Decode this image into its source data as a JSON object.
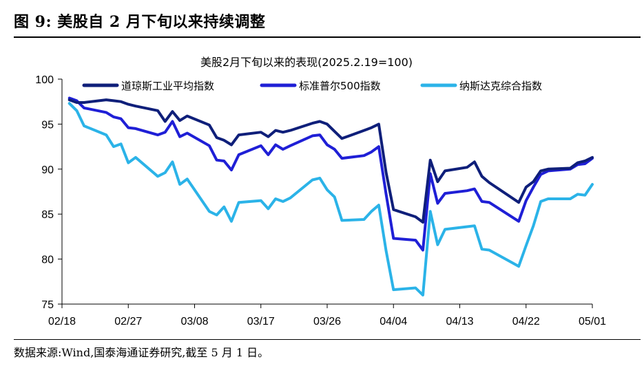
{
  "figure": {
    "title": "图 9:  美股自 2 月下旬以来持续调整",
    "source": "数据来源:Wind,国泰海通证券研究,截至 5 月 1 日。"
  },
  "chart_data": {
    "type": "line",
    "title": "美股2月下旬以来的表现(2025.2.19=100)",
    "xlabel": "",
    "ylabel": "",
    "ylim": [
      75,
      100
    ],
    "yticks": [
      75,
      80,
      85,
      90,
      95,
      100
    ],
    "xticks": [
      "02/18",
      "02/27",
      "03/08",
      "03/17",
      "03/26",
      "04/04",
      "04/13",
      "04/22",
      "05/01"
    ],
    "x_range": [
      "02/18",
      "05/01"
    ],
    "grid": false,
    "legend": "top",
    "series": [
      {
        "name": "道琼斯工业平均指数",
        "color": "#0f1f7a",
        "points": [
          [
            "02/19",
            97.7
          ],
          [
            "02/20",
            97.4
          ],
          [
            "02/21",
            97.4
          ],
          [
            "02/24",
            97.7
          ],
          [
            "02/25",
            97.6
          ],
          [
            "02/26",
            97.5
          ],
          [
            "02/27",
            97.2
          ],
          [
            "02/28",
            97.0
          ],
          [
            "03/03",
            96.5
          ],
          [
            "03/04",
            95.3
          ],
          [
            "03/05",
            96.4
          ],
          [
            "03/06",
            95.4
          ],
          [
            "03/07",
            95.9
          ],
          [
            "03/10",
            94.9
          ],
          [
            "03/11",
            93.5
          ],
          [
            "03/12",
            93.2
          ],
          [
            "03/13",
            92.7
          ],
          [
            "03/14",
            93.8
          ],
          [
            "03/17",
            94.1
          ],
          [
            "03/18",
            93.6
          ],
          [
            "03/19",
            94.3
          ],
          [
            "03/20",
            94.1
          ],
          [
            "03/21",
            94.3
          ],
          [
            "03/24",
            95.1
          ],
          [
            "03/25",
            95.3
          ],
          [
            "03/26",
            95.0
          ],
          [
            "03/27",
            94.2
          ],
          [
            "03/28",
            93.4
          ],
          [
            "03/31",
            94.3
          ],
          [
            "04/01",
            94.6
          ],
          [
            "04/02",
            95.0
          ],
          [
            "04/03",
            89.6
          ],
          [
            "04/04",
            85.5
          ],
          [
            "04/07",
            84.7
          ],
          [
            "04/08",
            84.1
          ],
          [
            "04/09",
            91.0
          ],
          [
            "04/10",
            88.6
          ],
          [
            "04/11",
            89.8
          ],
          [
            "04/14",
            90.2
          ],
          [
            "04/15",
            90.8
          ],
          [
            "04/16",
            89.2
          ],
          [
            "04/17",
            88.5
          ],
          [
            "04/21",
            86.3
          ],
          [
            "04/22",
            88.0
          ],
          [
            "04/23",
            88.6
          ],
          [
            "04/24",
            89.8
          ],
          [
            "04/25",
            90.0
          ],
          [
            "04/28",
            90.1
          ],
          [
            "04/29",
            90.7
          ],
          [
            "04/30",
            90.9
          ],
          [
            "05/01",
            91.3
          ]
        ]
      },
      {
        "name": "标准普尔500指数",
        "color": "#1f1fd6",
        "points": [
          [
            "02/19",
            97.9
          ],
          [
            "02/20",
            97.6
          ],
          [
            "02/21",
            96.8
          ],
          [
            "02/24",
            96.3
          ],
          [
            "02/25",
            95.8
          ],
          [
            "02/26",
            95.6
          ],
          [
            "02/27",
            94.6
          ],
          [
            "02/28",
            94.5
          ],
          [
            "03/03",
            93.8
          ],
          [
            "03/04",
            94.1
          ],
          [
            "03/05",
            95.3
          ],
          [
            "03/06",
            93.6
          ],
          [
            "03/07",
            94.0
          ],
          [
            "03/10",
            92.6
          ],
          [
            "03/11",
            91.0
          ],
          [
            "03/12",
            90.9
          ],
          [
            "03/13",
            89.9
          ],
          [
            "03/14",
            91.6
          ],
          [
            "03/17",
            92.6
          ],
          [
            "03/18",
            91.6
          ],
          [
            "03/19",
            92.7
          ],
          [
            "03/20",
            92.2
          ],
          [
            "03/21",
            92.6
          ],
          [
            "03/24",
            93.7
          ],
          [
            "03/25",
            93.8
          ],
          [
            "03/26",
            92.7
          ],
          [
            "03/27",
            92.2
          ],
          [
            "03/28",
            91.2
          ],
          [
            "03/31",
            91.5
          ],
          [
            "04/01",
            91.9
          ],
          [
            "04/02",
            92.5
          ],
          [
            "04/03",
            87.2
          ],
          [
            "04/04",
            82.3
          ],
          [
            "04/07",
            82.1
          ],
          [
            "04/08",
            81.0
          ],
          [
            "04/09",
            89.5
          ],
          [
            "04/10",
            86.2
          ],
          [
            "04/11",
            87.3
          ],
          [
            "04/14",
            87.6
          ],
          [
            "04/15",
            87.8
          ],
          [
            "04/16",
            86.4
          ],
          [
            "04/17",
            86.3
          ],
          [
            "04/21",
            84.2
          ],
          [
            "04/22",
            86.5
          ],
          [
            "04/23",
            88.0
          ],
          [
            "04/24",
            89.4
          ],
          [
            "04/25",
            89.8
          ],
          [
            "04/28",
            90.0
          ],
          [
            "04/29",
            90.5
          ],
          [
            "04/30",
            90.6
          ],
          [
            "05/01",
            91.2
          ]
        ]
      },
      {
        "name": "纳斯达克综合指数",
        "color": "#2bb3e8",
        "points": [
          [
            "02/19",
            97.3
          ],
          [
            "02/20",
            96.5
          ],
          [
            "02/21",
            94.8
          ],
          [
            "02/24",
            93.8
          ],
          [
            "02/25",
            92.5
          ],
          [
            "02/26",
            92.8
          ],
          [
            "02/27",
            90.7
          ],
          [
            "02/28",
            91.3
          ],
          [
            "03/03",
            89.2
          ],
          [
            "03/04",
            89.6
          ],
          [
            "03/05",
            90.8
          ],
          [
            "03/06",
            88.3
          ],
          [
            "03/07",
            88.9
          ],
          [
            "03/10",
            85.3
          ],
          [
            "03/11",
            84.9
          ],
          [
            "03/12",
            85.8
          ],
          [
            "03/13",
            84.2
          ],
          [
            "03/14",
            86.3
          ],
          [
            "03/17",
            86.5
          ],
          [
            "03/18",
            85.6
          ],
          [
            "03/19",
            86.7
          ],
          [
            "03/20",
            86.4
          ],
          [
            "03/21",
            86.8
          ],
          [
            "03/24",
            88.8
          ],
          [
            "03/25",
            89.0
          ],
          [
            "03/26",
            87.7
          ],
          [
            "03/27",
            86.9
          ],
          [
            "03/28",
            84.3
          ],
          [
            "03/31",
            84.4
          ],
          [
            "04/01",
            85.3
          ],
          [
            "04/02",
            86.0
          ],
          [
            "04/03",
            80.9
          ],
          [
            "04/04",
            76.6
          ],
          [
            "04/07",
            76.8
          ],
          [
            "04/08",
            76.0
          ],
          [
            "04/09",
            85.3
          ],
          [
            "04/10",
            81.6
          ],
          [
            "04/11",
            83.3
          ],
          [
            "04/14",
            83.6
          ],
          [
            "04/15",
            83.7
          ],
          [
            "04/16",
            81.1
          ],
          [
            "04/17",
            81.0
          ],
          [
            "04/21",
            79.2
          ],
          [
            "04/22",
            81.5
          ],
          [
            "04/23",
            83.7
          ],
          [
            "04/24",
            86.4
          ],
          [
            "04/25",
            86.7
          ],
          [
            "04/28",
            86.7
          ],
          [
            "04/29",
            87.2
          ],
          [
            "04/30",
            87.1
          ],
          [
            "05/01",
            88.3
          ]
        ]
      }
    ]
  }
}
